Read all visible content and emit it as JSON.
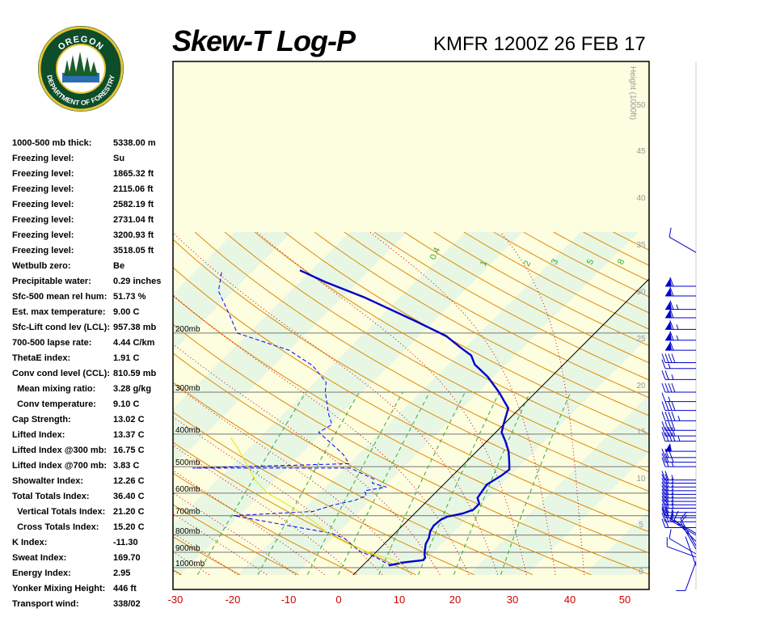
{
  "header": {
    "title": "Skew-T Log-P",
    "subtitle": "KMFR 1200Z 26 FEB 17"
  },
  "logo": {
    "text_top": "OREGON",
    "text_bottom": "DEPARTMENT OF FORESTRY"
  },
  "indices": [
    {
      "label": "1000-500 mb thick:",
      "value": "5338.00 m"
    },
    {
      "label": "Freezing level:",
      "value": "Su"
    },
    {
      "label": "Freezing level:",
      "value": "1865.32 ft"
    },
    {
      "label": "Freezing level:",
      "value": "2115.06 ft"
    },
    {
      "label": "Freezing level:",
      "value": "2582.19 ft"
    },
    {
      "label": "Freezing level:",
      "value": "2731.04 ft"
    },
    {
      "label": "Freezing level:",
      "value": "3200.93 ft"
    },
    {
      "label": "Freezing level:",
      "value": "3518.05 ft"
    },
    {
      "label": "Wetbulb zero:",
      "value": "Be"
    },
    {
      "label": "Precipitable water:",
      "value": "0.29 inches"
    },
    {
      "label": "Sfc-500 mean rel hum:",
      "value": "51.73 %"
    },
    {
      "label": "Est. max temperature:",
      "value": "9.00 C"
    },
    {
      "label": "Sfc-Lift cond lev (LCL):",
      "value": "957.38 mb"
    },
    {
      "label": "700-500 lapse rate:",
      "value": "4.44 C/km"
    },
    {
      "label": "ThetaE index:",
      "value": "1.91 C"
    },
    {
      "label": "Conv cond level (CCL):",
      "value": "810.59 mb"
    },
    {
      "label": "  Mean mixing ratio:",
      "value": "3.28 g/kg"
    },
    {
      "label": "  Conv temperature:",
      "value": "9.10 C"
    },
    {
      "label": "Cap Strength:",
      "value": "13.02 C"
    },
    {
      "label": "Lifted Index:",
      "value": "13.37 C"
    },
    {
      "label": "Lifted Index @300 mb:",
      "value": "16.75 C"
    },
    {
      "label": "Lifted Index @700 mb:",
      "value": "3.83 C"
    },
    {
      "label": "Showalter Index:",
      "value": "12.26 C"
    },
    {
      "label": "Total Totals Index:",
      "value": "36.40 C"
    },
    {
      "label": "  Vertical Totals Index:",
      "value": "21.20 C"
    },
    {
      "label": "  Cross Totals Index:",
      "value": "15.20 C"
    },
    {
      "label": "K Index:",
      "value": "-11.30"
    },
    {
      "label": "Sweat Index:",
      "value": "169.70"
    },
    {
      "label": "Energy Index:",
      "value": "2.95"
    },
    {
      "label": "Yonker Mixing Height:",
      "value": "446 ft"
    },
    {
      "label": "Transport wind:",
      "value": "338/02"
    }
  ],
  "chart_data": {
    "type": "line",
    "title": "Skew-T Log-P",
    "x_ticks": [
      "-30",
      "-20",
      "-10",
      "0",
      "10",
      "20",
      "30",
      "40",
      "50"
    ],
    "pressure_labels": [
      "200mb",
      "300mb",
      "400mb",
      "500mb",
      "600mb",
      "700mb",
      "800mb",
      "900mb",
      "1000mb"
    ],
    "pressure_levels": [
      200,
      300,
      400,
      500,
      600,
      700,
      800,
      900,
      1000
    ],
    "height_axis_label": "Height (1000ft)",
    "height_ticks": [
      "0",
      "5",
      "10",
      "15",
      "20",
      "25",
      "30",
      "35",
      "40",
      "45",
      "50"
    ],
    "mixing_ratio_labels": [
      "0.4",
      "1",
      "2",
      "3",
      "5",
      "8"
    ],
    "colors": {
      "temperature": "#0000cc",
      "dewpoint": "#0000ff",
      "parcel": "#e6e600",
      "dry_adiabat": "#e08a00",
      "moist_adiabat": "#cc0000",
      "mixing_ratio": "#33aa33",
      "band_green": "#e8f7e4",
      "band_yellow": "#fdfde0"
    },
    "series": [
      {
        "key": "temperature",
        "points": [
          [
            4.5,
            985
          ],
          [
            6.6,
            965
          ],
          [
            9.5,
            950
          ],
          [
            9.5,
            935
          ],
          [
            8.7,
            910
          ],
          [
            7.2,
            850
          ],
          [
            6.7,
            815
          ],
          [
            5.8,
            780
          ],
          [
            5.4,
            750
          ],
          [
            5.6,
            720
          ],
          [
            6.2,
            705
          ],
          [
            8.3,
            690
          ],
          [
            9.5,
            672
          ],
          [
            9.5,
            645
          ],
          [
            8.2,
            620
          ],
          [
            7.8,
            590
          ],
          [
            7.5,
            565
          ],
          [
            8.5,
            530
          ],
          [
            8.8,
            510
          ],
          [
            7.5,
            485
          ],
          [
            5.5,
            450
          ],
          [
            3.2,
            420
          ],
          [
            1.0,
            395
          ],
          [
            0.0,
            375
          ],
          [
            -2.0,
            335
          ],
          [
            -6.4,
            300
          ],
          [
            -11.0,
            270
          ],
          [
            -15.4,
            248
          ],
          [
            -17.6,
            233
          ],
          [
            -20.5,
            222
          ],
          [
            -25.3,
            204
          ],
          [
            -33.7,
            183
          ],
          [
            -45.9,
            157
          ],
          [
            -55.5,
            141
          ],
          [
            -62.0,
            130
          ]
        ]
      },
      {
        "key": "dewpoint",
        "points": [
          [
            5.0,
            985
          ],
          [
            3.3,
            965
          ],
          [
            0.8,
            930
          ],
          [
            -2.5,
            900
          ],
          [
            -4.5,
            870
          ],
          [
            -7.7,
            820
          ],
          [
            -11.0,
            790
          ],
          [
            -17.5,
            760
          ],
          [
            -31.0,
            700
          ],
          [
            -18.0,
            680
          ],
          [
            -15.5,
            650
          ],
          [
            -12.6,
            630
          ],
          [
            -11.5,
            610
          ],
          [
            -12.6,
            590
          ],
          [
            -9.5,
            575
          ],
          [
            -12.6,
            560
          ],
          [
            -13.0,
            545
          ],
          [
            -19.0,
            505
          ],
          [
            -46.3,
            505
          ],
          [
            -20.0,
            490
          ],
          [
            -22.6,
            460
          ],
          [
            -27.4,
            420
          ],
          [
            -30.7,
            395
          ],
          [
            -29.7,
            375
          ],
          [
            -32.0,
            350
          ],
          [
            -36.5,
            300
          ],
          [
            -38.1,
            280
          ],
          [
            -43.3,
            250
          ],
          [
            -50.0,
            225
          ],
          [
            -62.0,
            200
          ],
          [
            -66.8,
            175
          ],
          [
            -72.5,
            150
          ],
          [
            -75.5,
            130
          ]
        ]
      },
      {
        "key": "parcel",
        "points": [
          [
            7.0,
            985
          ],
          [
            5.5,
            960
          ],
          [
            3.4,
            940
          ],
          [
            -1.3,
            900
          ],
          [
            -6.2,
            850
          ],
          [
            -11.6,
            790
          ],
          [
            -16.0,
            730
          ],
          [
            -20.5,
            680
          ],
          [
            -24.5,
            640
          ],
          [
            -29.0,
            600
          ],
          [
            -33.3,
            550
          ],
          [
            -37.0,
            500
          ],
          [
            -42.0,
            440
          ],
          [
            -45.0,
            410
          ]
        ]
      }
    ],
    "wind_barbs": [
      {
        "pressure": 985,
        "direction": 340,
        "speed": 2
      },
      {
        "pressure": 960,
        "direction": 200,
        "speed": 10
      },
      {
        "pressure": 930,
        "direction": 290,
        "speed": 10
      },
      {
        "pressure": 910,
        "direction": 300,
        "speed": 10
      },
      {
        "pressure": 880,
        "direction": 330,
        "speed": 10
      },
      {
        "pressure": 860,
        "direction": 330,
        "speed": 10
      },
      {
        "pressure": 835,
        "direction": 315,
        "speed": 10
      },
      {
        "pressure": 800,
        "direction": 300,
        "speed": 5
      },
      {
        "pressure": 790,
        "direction": 300,
        "speed": 5
      },
      {
        "pressure": 760,
        "direction": 270,
        "speed": 20
      },
      {
        "pressure": 730,
        "direction": 270,
        "speed": 25
      },
      {
        "pressure": 710,
        "direction": 270,
        "speed": 25
      },
      {
        "pressure": 700,
        "direction": 270,
        "speed": 25
      },
      {
        "pressure": 685,
        "direction": 270,
        "speed": 25
      },
      {
        "pressure": 665,
        "direction": 270,
        "speed": 25
      },
      {
        "pressure": 650,
        "direction": 270,
        "speed": 25
      },
      {
        "pressure": 635,
        "direction": 270,
        "speed": 25
      },
      {
        "pressure": 620,
        "direction": 270,
        "speed": 25
      },
      {
        "pressure": 605,
        "direction": 270,
        "speed": 25
      },
      {
        "pressure": 590,
        "direction": 270,
        "speed": 25
      },
      {
        "pressure": 575,
        "direction": 270,
        "speed": 25
      },
      {
        "pressure": 560,
        "direction": 270,
        "speed": 25
      },
      {
        "pressure": 548,
        "direction": 270,
        "speed": 25
      },
      {
        "pressure": 500,
        "direction": 270,
        "speed": 25
      },
      {
        "pressure": 485,
        "direction": 270,
        "speed": 25
      },
      {
        "pressure": 470,
        "direction": 270,
        "speed": 30
      },
      {
        "pressure": 450,
        "direction": 270,
        "speed": 50
      },
      {
        "pressure": 420,
        "direction": 270,
        "speed": 45
      },
      {
        "pressure": 405,
        "direction": 270,
        "speed": 40
      },
      {
        "pressure": 390,
        "direction": 270,
        "speed": 40
      },
      {
        "pressure": 365,
        "direction": 270,
        "speed": 45
      },
      {
        "pressure": 340,
        "direction": 270,
        "speed": 40
      },
      {
        "pressure": 320,
        "direction": 270,
        "speed": 15
      },
      {
        "pressure": 300,
        "direction": 270,
        "speed": 40
      },
      {
        "pressure": 275,
        "direction": 270,
        "speed": 25
      },
      {
        "pressure": 255,
        "direction": 270,
        "speed": 15
      },
      {
        "pressure": 245,
        "direction": 270,
        "speed": 40
      },
      {
        "pressure": 225,
        "direction": 270,
        "speed": 60
      },
      {
        "pressure": 210,
        "direction": 270,
        "speed": 65
      },
      {
        "pressure": 195,
        "direction": 270,
        "speed": 65
      },
      {
        "pressure": 180,
        "direction": 270,
        "speed": 60
      },
      {
        "pressure": 170,
        "direction": 270,
        "speed": 65
      },
      {
        "pressure": 155,
        "direction": 270,
        "speed": 60
      },
      {
        "pressure": 145,
        "direction": 270,
        "speed": 60
      },
      {
        "pressure": 115,
        "direction": 300,
        "speed": 10
      }
    ]
  }
}
